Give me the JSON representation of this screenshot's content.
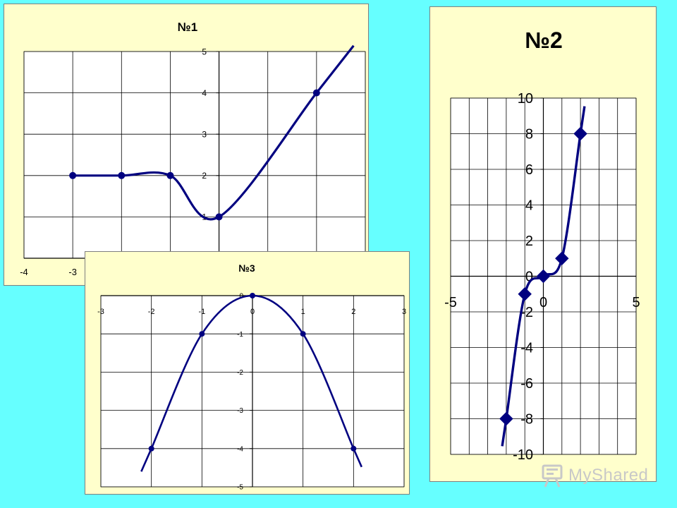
{
  "chart_data": [
    {
      "type": "line",
      "title": "№1",
      "x": [
        -3,
        -2,
        -1,
        0,
        2
      ],
      "y": [
        2,
        2,
        2,
        1,
        4
      ],
      "xlim": [
        -4,
        3
      ],
      "ylim": [
        0,
        5
      ],
      "x_ticks": [
        -4,
        -3
      ],
      "y_ticks": [
        1,
        2,
        3,
        4,
        5
      ],
      "grid": true,
      "marker": "circle",
      "smooth": true,
      "line_color": "#000080",
      "plot_bg": "#ffffff"
    },
    {
      "type": "line",
      "title": "№2",
      "x": [
        -2,
        -1,
        0,
        1,
        2
      ],
      "y": [
        -8,
        -1,
        0,
        1,
        8
      ],
      "xlim": [
        -5,
        5
      ],
      "ylim": [
        -10,
        10
      ],
      "x_ticks": [
        -5,
        0,
        5
      ],
      "y_ticks": [
        -10,
        -8,
        -6,
        -4,
        -2,
        0,
        2,
        4,
        6,
        8,
        10
      ],
      "grid": true,
      "marker": "diamond",
      "smooth": true,
      "line_color": "#000080",
      "plot_bg": "#ffffff"
    },
    {
      "type": "line",
      "title": "№3",
      "x": [
        -2,
        -1,
        0,
        1,
        2
      ],
      "y": [
        -4,
        -1,
        0,
        -1,
        -4
      ],
      "xlim": [
        -3,
        3
      ],
      "ylim": [
        -5,
        0
      ],
      "x_ticks": [
        -3,
        -2,
        -1,
        0,
        1,
        2,
        3
      ],
      "y_ticks": [
        0,
        -1,
        -2,
        -3,
        -4,
        -5
      ],
      "grid": true,
      "marker": "circle",
      "smooth": true,
      "line_color": "#000080",
      "plot_bg": "#ffffff"
    }
  ],
  "watermark": {
    "text": "MyShared",
    "icon": "presentation-board-icon",
    "color": "#c8c8c8"
  }
}
